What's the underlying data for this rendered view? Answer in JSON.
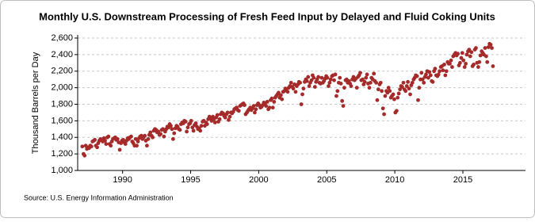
{
  "chart_data": {
    "type": "scatter",
    "title": "Monthly U.S. Downstream Processing of Fresh Feed Input by Delayed and Fluid Coking Units",
    "y_label": "Thousand Barrels per Day",
    "source": "Source: U.S. Energy Information Administration",
    "color": "#a52a2a",
    "grid": true,
    "xlim": [
      1986.7,
      2019.6
    ],
    "ylim": [
      1000,
      2600
    ],
    "xticks": [
      1990,
      1995,
      2000,
      2005,
      2010,
      2015
    ],
    "yticks": [
      {
        "value": 1000,
        "label": "1,000"
      },
      {
        "value": 1200,
        "label": "1,200"
      },
      {
        "value": 1400,
        "label": "1,400"
      },
      {
        "value": 1600,
        "label": "1,600"
      },
      {
        "value": 1800,
        "label": "1,800"
      },
      {
        "value": 2000,
        "label": "2,000"
      },
      {
        "value": 2200,
        "label": "2,200"
      },
      {
        "value": 2400,
        "label": "2,400"
      },
      {
        "value": 2600,
        "label": "2,600"
      }
    ],
    "x": [
      1987.04,
      1987.13,
      1987.21,
      1987.29,
      1987.38,
      1987.46,
      1987.54,
      1987.63,
      1987.71,
      1987.79,
      1987.88,
      1987.96,
      1988.04,
      1988.13,
      1988.21,
      1988.29,
      1988.38,
      1988.46,
      1988.54,
      1988.63,
      1988.71,
      1988.79,
      1988.88,
      1988.96,
      1989.04,
      1989.13,
      1989.21,
      1989.29,
      1989.38,
      1989.46,
      1989.54,
      1989.63,
      1989.71,
      1989.79,
      1989.88,
      1989.96,
      1990.04,
      1990.13,
      1990.21,
      1990.29,
      1990.38,
      1990.46,
      1990.54,
      1990.63,
      1990.71,
      1990.79,
      1990.88,
      1990.96,
      1991.04,
      1991.13,
      1991.21,
      1991.29,
      1991.38,
      1991.46,
      1991.54,
      1991.63,
      1991.71,
      1991.79,
      1991.88,
      1991.96,
      1992.04,
      1992.13,
      1992.21,
      1992.29,
      1992.38,
      1992.46,
      1992.54,
      1992.63,
      1992.71,
      1992.79,
      1992.88,
      1992.96,
      1993.04,
      1993.13,
      1993.21,
      1993.29,
      1993.38,
      1993.46,
      1993.54,
      1993.63,
      1993.71,
      1993.79,
      1993.88,
      1993.96,
      1994.04,
      1994.13,
      1994.21,
      1994.29,
      1994.38,
      1994.46,
      1994.54,
      1994.63,
      1994.71,
      1994.79,
      1994.88,
      1994.96,
      1995.04,
      1995.13,
      1995.21,
      1995.29,
      1995.38,
      1995.46,
      1995.54,
      1995.63,
      1995.71,
      1995.79,
      1995.88,
      1995.96,
      1996.04,
      1996.13,
      1996.21,
      1996.29,
      1996.38,
      1996.46,
      1996.54,
      1996.63,
      1996.71,
      1996.79,
      1996.88,
      1996.96,
      1997.04,
      1997.13,
      1997.21,
      1997.29,
      1997.38,
      1997.46,
      1997.54,
      1997.63,
      1997.71,
      1997.79,
      1997.88,
      1997.96,
      1998.04,
      1998.13,
      1998.21,
      1998.29,
      1998.38,
      1998.46,
      1998.54,
      1998.63,
      1998.71,
      1998.79,
      1998.88,
      1998.96,
      1999.04,
      1999.13,
      1999.21,
      1999.29,
      1999.38,
      1999.46,
      1999.54,
      1999.63,
      1999.71,
      1999.79,
      1999.88,
      1999.96,
      2000.04,
      2000.13,
      2000.21,
      2000.29,
      2000.38,
      2000.46,
      2000.54,
      2000.63,
      2000.71,
      2000.79,
      2000.88,
      2000.96,
      2001.04,
      2001.13,
      2001.21,
      2001.29,
      2001.38,
      2001.46,
      2001.54,
      2001.63,
      2001.71,
      2001.79,
      2001.88,
      2001.96,
      2002.04,
      2002.13,
      2002.21,
      2002.29,
      2002.38,
      2002.46,
      2002.54,
      2002.63,
      2002.71,
      2002.79,
      2002.88,
      2002.96,
      2003.04,
      2003.13,
      2003.21,
      2003.29,
      2003.38,
      2003.46,
      2003.54,
      2003.63,
      2003.71,
      2003.79,
      2003.88,
      2003.96,
      2004.04,
      2004.13,
      2004.21,
      2004.29,
      2004.38,
      2004.46,
      2004.54,
      2004.63,
      2004.71,
      2004.79,
      2004.88,
      2004.96,
      2005.04,
      2005.13,
      2005.21,
      2005.29,
      2005.38,
      2005.46,
      2005.54,
      2005.63,
      2005.71,
      2005.79,
      2005.88,
      2005.96,
      2006.04,
      2006.13,
      2006.21,
      2006.29,
      2006.38,
      2006.46,
      2006.54,
      2006.63,
      2006.71,
      2006.79,
      2006.88,
      2006.96,
      2007.04,
      2007.13,
      2007.21,
      2007.29,
      2007.38,
      2007.46,
      2007.54,
      2007.63,
      2007.71,
      2007.79,
      2007.88,
      2007.96,
      2008.04,
      2008.13,
      2008.21,
      2008.29,
      2008.38,
      2008.46,
      2008.54,
      2008.63,
      2008.71,
      2008.79,
      2008.88,
      2008.96,
      2009.04,
      2009.13,
      2009.21,
      2009.29,
      2009.38,
      2009.46,
      2009.54,
      2009.63,
      2009.71,
      2009.79,
      2009.88,
      2009.96,
      2010.04,
      2010.13,
      2010.21,
      2010.29,
      2010.38,
      2010.46,
      2010.54,
      2010.63,
      2010.71,
      2010.79,
      2010.88,
      2010.96,
      2011.04,
      2011.13,
      2011.21,
      2011.29,
      2011.38,
      2011.46,
      2011.54,
      2011.63,
      2011.71,
      2011.79,
      2011.88,
      2011.96,
      2012.04,
      2012.13,
      2012.21,
      2012.29,
      2012.38,
      2012.46,
      2012.54,
      2012.63,
      2012.71,
      2012.79,
      2012.88,
      2012.96,
      2013.04,
      2013.13,
      2013.21,
      2013.29,
      2013.38,
      2013.46,
      2013.54,
      2013.63,
      2013.71,
      2013.79,
      2013.88,
      2013.96,
      2014.04,
      2014.13,
      2014.21,
      2014.29,
      2014.38,
      2014.46,
      2014.54,
      2014.63,
      2014.71,
      2014.79,
      2014.88,
      2014.96,
      2015.04,
      2015.13,
      2015.21,
      2015.29,
      2015.38,
      2015.46,
      2015.54,
      2015.63,
      2015.71,
      2015.79,
      2015.88,
      2015.96,
      2016.04,
      2016.13,
      2016.21,
      2016.29,
      2016.38,
      2016.46,
      2016.54,
      2016.63,
      2016.71,
      2016.79,
      2016.88,
      2016.96,
      2017.04,
      2017.13,
      2017.21
    ],
    "values": [
      1290,
      1200,
      1180,
      1300,
      1260,
      1280,
      1270,
      1300,
      1290,
      1350,
      1360,
      1370,
      1300,
      1280,
      1330,
      1360,
      1380,
      1370,
      1350,
      1390,
      1360,
      1320,
      1400,
      1410,
      1320,
      1300,
      1350,
      1380,
      1390,
      1400,
      1370,
      1380,
      1340,
      1250,
      1330,
      1360,
      1370,
      1340,
      1320,
      1360,
      1390,
      1380,
      1400,
      1410,
      1350,
      1330,
      1300,
      1380,
      1300,
      1350,
      1390,
      1410,
      1420,
      1380,
      1400,
      1420,
      1360,
      1300,
      1380,
      1430,
      1460,
      1420,
      1400,
      1480,
      1500,
      1490,
      1460,
      1470,
      1430,
      1440,
      1490,
      1500,
      1410,
      1470,
      1500,
      1530,
      1520,
      1560,
      1540,
      1500,
      1380,
      1450,
      1510,
      1540,
      1530,
      1500,
      1490,
      1560,
      1580,
      1570,
      1600,
      1590,
      1470,
      1520,
      1560,
      1570,
      1600,
      1520,
      1480,
      1550,
      1570,
      1530,
      1500,
      1510,
      1480,
      1540,
      1590,
      1600,
      1540,
      1580,
      1560,
      1620,
      1650,
      1630,
      1600,
      1650,
      1620,
      1580,
      1640,
      1670,
      1590,
      1620,
      1680,
      1700,
      1690,
      1660,
      1640,
      1680,
      1700,
      1610,
      1650,
      1700,
      1690,
      1710,
      1740,
      1750,
      1760,
      1730,
      1720,
      1780,
      1790,
      1800,
      1810,
      1790,
      1680,
      1700,
      1720,
      1740,
      1760,
      1730,
      1750,
      1780,
      1700,
      1740,
      1790,
      1810,
      1790,
      1760,
      1770,
      1790,
      1820,
      1800,
      1780,
      1830,
      1740,
      1760,
      1850,
      1870,
      1760,
      1830,
      1880,
      1900,
      1920,
      1940,
      1880,
      1910,
      1860,
      1950,
      1960,
      1990,
      1980,
      1950,
      2000,
      2020,
      2060,
      2010,
      1990,
      2040,
      1950,
      2020,
      2040,
      2070,
      2060,
      1800,
      1920,
      1990,
      2070,
      2100,
      2080,
      2130,
      2020,
      2060,
      2090,
      2150,
      2120,
      2010,
      2070,
      2100,
      2130,
      2060,
      2050,
      2120,
      2060,
      2080,
      2110,
      2140,
      2120,
      2020,
      2060,
      2100,
      2140,
      2150,
      2090,
      2160,
      1900,
      1960,
      2060,
      2120,
      2050,
      1840,
      1780,
      2000,
      2090,
      2100,
      2060,
      2080,
      2050,
      2020,
      2100,
      2130,
      2090,
      2110,
      2000,
      2130,
      2150,
      2180,
      2090,
      2100,
      2040,
      2070,
      2120,
      2160,
      2050,
      2000,
      2060,
      2120,
      2100,
      2170,
      2080,
      2060,
      1850,
      1980,
      2040,
      2060,
      1960,
      1750,
      1680,
      1900,
      1960,
      1940,
      2000,
      1960,
      1880,
      1900,
      1920,
      1860,
      1700,
      1720,
      1880,
      1930,
      1980,
      2020,
      2010,
      2060,
      1980,
      1960,
      2020,
      2070,
      1990,
      1920,
      2030,
      2060,
      2100,
      2120,
      2150,
      2140,
      1850,
      2000,
      2100,
      2180,
      2100,
      2060,
      2130,
      2160,
      2200,
      2120,
      2190,
      2150,
      2080,
      2070,
      2200,
      2230,
      2150,
      2140,
      2160,
      2200,
      2250,
      2260,
      2210,
      2280,
      2150,
      2200,
      2310,
      2290,
      2290,
      2330,
      2250,
      2380,
      2400,
      2420,
      2390,
      2410,
      2270,
      2300,
      2360,
      2420,
      2330,
      2250,
      2290,
      2400,
      2440,
      2460,
      2380,
      2430,
      2260,
      2280,
      2460,
      2480,
      2300,
      2250,
      2310,
      2390,
      2440,
      2420,
      2400,
      2480,
      2380,
      2310,
      2490,
      2530,
      2520,
      2480,
      2260
    ]
  }
}
